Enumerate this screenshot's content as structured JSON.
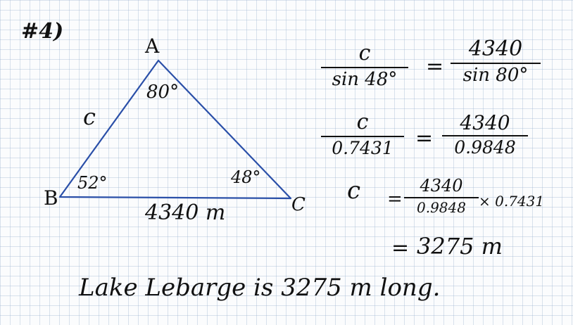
{
  "problem_number": "#4)",
  "triangle": {
    "vertex_a": "A",
    "vertex_b": "B",
    "vertex_c": "C",
    "angle_a": "80°",
    "angle_b": "52°",
    "angle_c": "48°",
    "side_c_label": "c",
    "base_label": "4340 m",
    "line_color": "#2a4fa8"
  },
  "equations": {
    "eq1": {
      "lhs_num": "c",
      "lhs_den": "sin 48°",
      "equals": "=",
      "rhs_num": "4340",
      "rhs_den": "sin 80°"
    },
    "eq2": {
      "lhs_num": "c",
      "lhs_den": "0.7431",
      "equals": "=",
      "rhs_num": "4340",
      "rhs_den": "0.9848"
    },
    "eq3": {
      "lhs": "c",
      "equals": "=",
      "num": "4340",
      "den": "0.9848",
      "times": "× 0.7431"
    },
    "eq4": {
      "equals": "=",
      "result": "3275 m"
    }
  },
  "conclusion": "Lake Lebarge is 3275 m long."
}
